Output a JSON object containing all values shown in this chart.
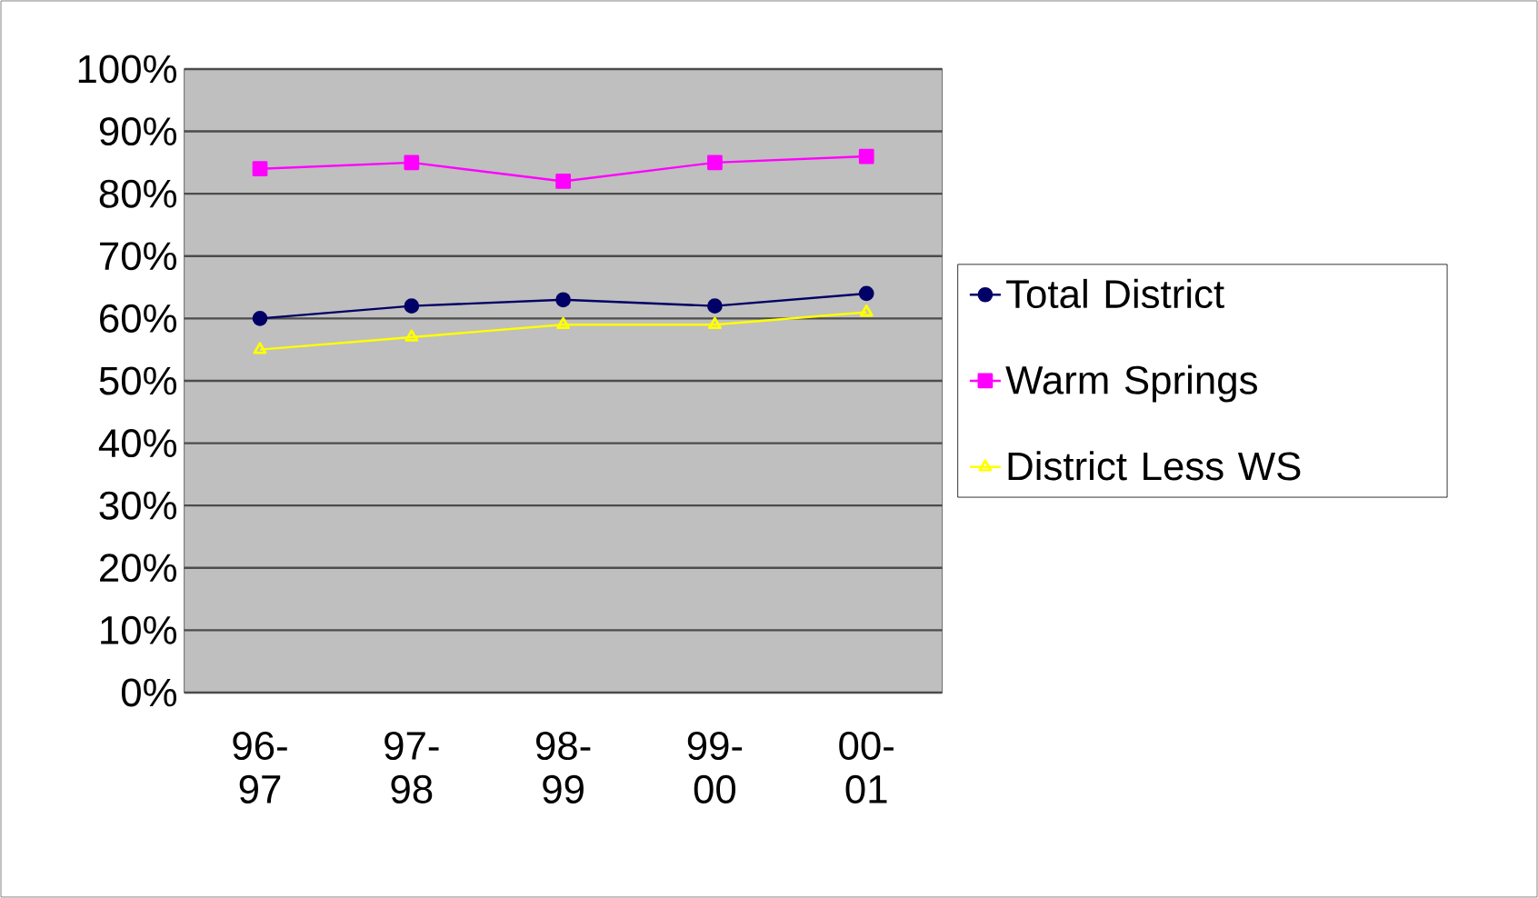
{
  "chart_data": {
    "type": "line",
    "categories": [
      "96-97",
      "97-98",
      "98-99",
      "99-00",
      "00-01"
    ],
    "series": [
      {
        "name": "Total District",
        "color": "#000066",
        "marker": "circle",
        "values": [
          60,
          62,
          63,
          62,
          64
        ]
      },
      {
        "name": "Warm Springs",
        "color": "#ff00ff",
        "marker": "square",
        "values": [
          84,
          85,
          82,
          85,
          86
        ]
      },
      {
        "name": "District Less WS",
        "color": "#ffff00",
        "marker": "triangle",
        "values": [
          55,
          57,
          59,
          59,
          61
        ]
      }
    ],
    "ylim": [
      0,
      100
    ],
    "yticks": [
      {
        "value": 0,
        "label": "0%"
      },
      {
        "value": 10,
        "label": "10%"
      },
      {
        "value": 20,
        "label": "20%"
      },
      {
        "value": 30,
        "label": "30%"
      },
      {
        "value": 40,
        "label": "40%"
      },
      {
        "value": 50,
        "label": "50%"
      },
      {
        "value": 60,
        "label": "60%"
      },
      {
        "value": 70,
        "label": "70%"
      },
      {
        "value": 80,
        "label": "80%"
      },
      {
        "value": 90,
        "label": "90%"
      },
      {
        "value": 100,
        "label": "100%"
      }
    ],
    "grid": "y",
    "legend": "right"
  }
}
